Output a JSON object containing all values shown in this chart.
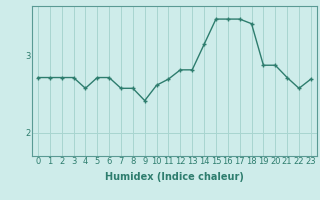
{
  "x": [
    0,
    1,
    2,
    3,
    4,
    5,
    6,
    7,
    8,
    9,
    10,
    11,
    12,
    13,
    14,
    15,
    16,
    17,
    18,
    19,
    20,
    21,
    22,
    23
  ],
  "y": [
    2.72,
    2.72,
    2.72,
    2.72,
    2.58,
    2.72,
    2.72,
    2.58,
    2.58,
    2.42,
    2.62,
    2.7,
    2.82,
    2.82,
    3.15,
    3.48,
    3.48,
    3.48,
    3.42,
    2.88,
    2.88,
    2.72,
    2.58,
    2.7
  ],
  "line_color": "#2e7d6e",
  "marker": "+",
  "marker_size": 3,
  "marker_edge_width": 1.0,
  "background_color": "#ceecea",
  "grid_color": "#a8d5d0",
  "xlabel": "Humidex (Indice chaleur)",
  "xlabel_fontsize": 7,
  "xlabel_fontweight": "bold",
  "ytick_labels": [
    "2",
    "3"
  ],
  "ytick_values": [
    2.0,
    3.0
  ],
  "ylim": [
    1.7,
    3.65
  ],
  "xlim": [
    -0.5,
    23.5
  ],
  "tick_fontsize": 6,
  "line_width": 1.0,
  "spine_color": "#5a9a94"
}
